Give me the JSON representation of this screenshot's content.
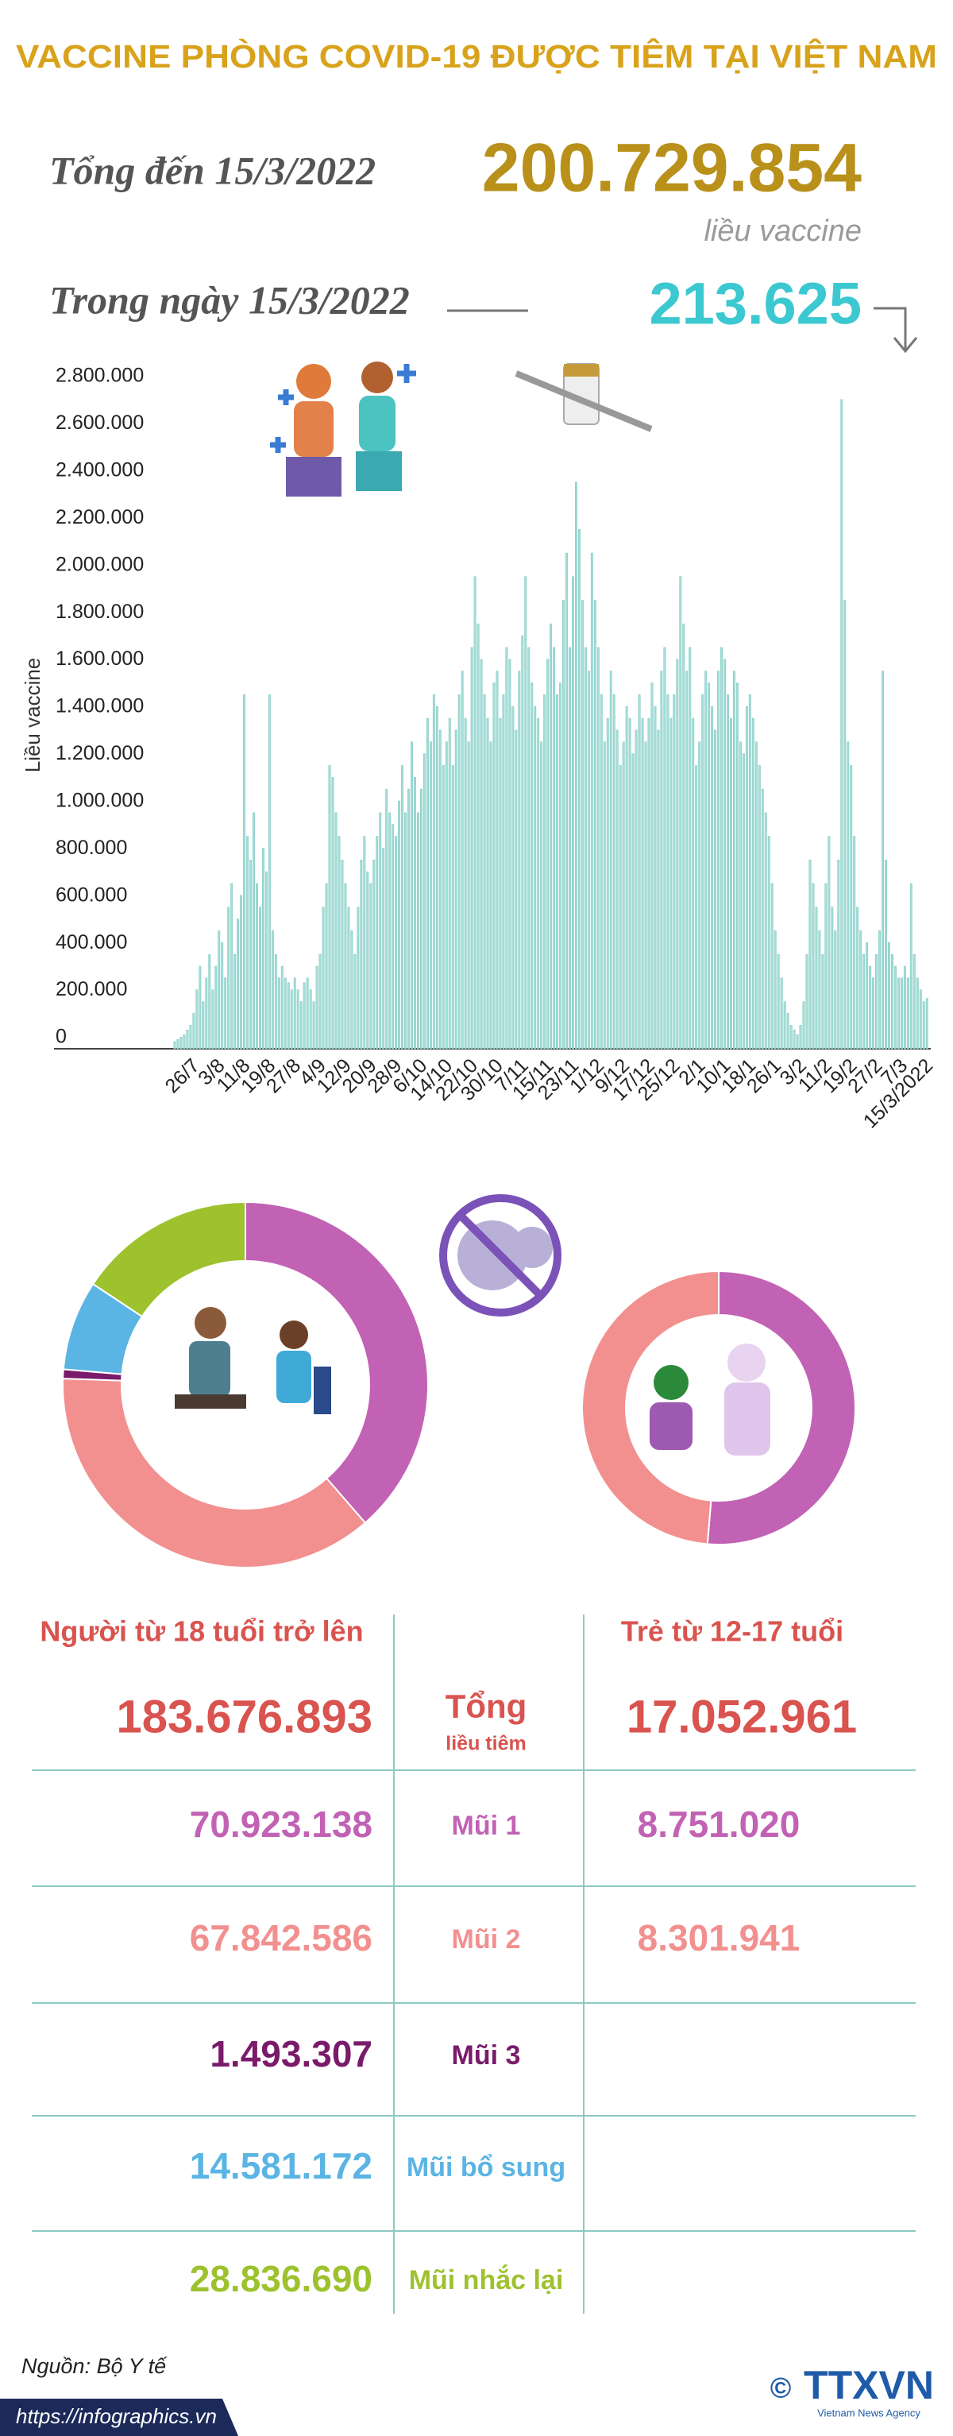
{
  "header": {
    "title": "VACCINE PHÒNG COVID-19 ĐƯỢC TIÊM TẠI VIỆT NAM",
    "total_label": "Tổng đến 15/3/2022",
    "total": "200.729.854",
    "unit": "liều vaccine",
    "daily_label": "Trong ngày 15/3/2022",
    "daily": "213.625"
  },
  "chart_data": [
    {
      "type": "bar",
      "y_label": "Liều vaccine",
      "color": "#a6ddd8",
      "grid": false,
      "ylim": [
        0,
        2800000
      ],
      "yticks": [
        0,
        {
          "value": 200000,
          "label": "200.000"
        },
        {
          "value": 400000,
          "label": "400.000"
        },
        {
          "value": 600000,
          "label": "600.000"
        },
        {
          "value": 800000,
          "label": "800.000"
        },
        {
          "value": 1000000,
          "label": "1.000.000"
        },
        {
          "value": 1200000,
          "label": "1.200.000"
        },
        {
          "value": 1400000,
          "label": "1.400.000"
        },
        {
          "value": 1600000,
          "label": "1.600.000"
        },
        {
          "value": 1800000,
          "label": "1.800.000"
        },
        {
          "value": 2000000,
          "label": "2.000.000"
        },
        {
          "value": 2200000,
          "label": "2.200.000"
        },
        {
          "value": 2400000,
          "label": "2.400.000"
        },
        {
          "value": 2600000,
          "label": "2.600.000"
        },
        {
          "value": 2800000,
          "label": "2.800.000"
        }
      ],
      "categories": [
        null,
        null,
        null,
        null,
        null,
        null,
        "26/7",
        null,
        null,
        null,
        null,
        null,
        null,
        null,
        "3/8",
        null,
        null,
        null,
        null,
        null,
        null,
        null,
        "11/8",
        null,
        null,
        null,
        null,
        null,
        null,
        null,
        "19/8",
        null,
        null,
        null,
        null,
        null,
        null,
        null,
        "27/8",
        null,
        null,
        null,
        null,
        null,
        null,
        null,
        "4/9",
        null,
        null,
        null,
        null,
        null,
        null,
        null,
        "12/9",
        null,
        null,
        null,
        null,
        null,
        null,
        null,
        "20/9",
        null,
        null,
        null,
        null,
        null,
        null,
        null,
        "28/9",
        null,
        null,
        null,
        null,
        null,
        null,
        null,
        "6/10",
        null,
        null,
        null,
        null,
        null,
        null,
        null,
        "14/10",
        null,
        null,
        null,
        null,
        null,
        null,
        null,
        "22/10",
        null,
        null,
        null,
        null,
        null,
        null,
        null,
        "30/10",
        null,
        null,
        null,
        null,
        null,
        null,
        null,
        "7/11",
        null,
        null,
        null,
        null,
        null,
        null,
        null,
        "15/11",
        null,
        null,
        null,
        null,
        null,
        null,
        null,
        "23/11",
        null,
        null,
        null,
        null,
        null,
        null,
        null,
        "1/12",
        null,
        null,
        null,
        null,
        null,
        null,
        null,
        "9/12",
        null,
        null,
        null,
        null,
        null,
        null,
        null,
        "17/12",
        null,
        null,
        null,
        null,
        null,
        null,
        null,
        "25/12",
        null,
        null,
        null,
        null,
        null,
        null,
        null,
        "2/1",
        null,
        null,
        null,
        null,
        null,
        null,
        null,
        "10/1",
        null,
        null,
        null,
        null,
        null,
        null,
        null,
        "18/1",
        null,
        null,
        null,
        null,
        null,
        null,
        null,
        "26/1",
        null,
        null,
        null,
        null,
        null,
        null,
        null,
        "3/2",
        null,
        null,
        null,
        null,
        null,
        null,
        null,
        "11/2",
        null,
        null,
        null,
        null,
        null,
        null,
        null,
        "19/2",
        null,
        null,
        null,
        null,
        null,
        null,
        null,
        "27/2",
        null,
        null,
        null,
        null,
        null,
        null,
        null,
        "7/3",
        null,
        null,
        null,
        null,
        null,
        null,
        null,
        "15/3/2022"
      ],
      "values": [
        30000,
        40000,
        50000,
        60000,
        80000,
        100000,
        150000,
        250000,
        350000,
        200000,
        300000,
        400000,
        250000,
        350000,
        500000,
        450000,
        300000,
        600000,
        700000,
        400000,
        550000,
        650000,
        1500000,
        900000,
        800000,
        1000000,
        700000,
        600000,
        850000,
        750000,
        1500000,
        500000,
        400000,
        300000,
        350000,
        300000,
        280000,
        250000,
        300000,
        250000,
        200000,
        280000,
        300000,
        250000,
        200000,
        350000,
        400000,
        600000,
        700000,
        1200000,
        1150000,
        1000000,
        900000,
        800000,
        700000,
        600000,
        500000,
        400000,
        600000,
        800000,
        900000,
        750000,
        700000,
        800000,
        900000,
        1000000,
        850000,
        1100000,
        1000000,
        950000,
        900000,
        1050000,
        1200000,
        1000000,
        1100000,
        1300000,
        1150000,
        1000000,
        1100000,
        1250000,
        1400000,
        1300000,
        1500000,
        1450000,
        1350000,
        1200000,
        1300000,
        1400000,
        1200000,
        1350000,
        1500000,
        1600000,
        1400000,
        1300000,
        1700000,
        2000000,
        1800000,
        1650000,
        1500000,
        1400000,
        1300000,
        1550000,
        1600000,
        1400000,
        1500000,
        1700000,
        1650000,
        1450000,
        1350000,
        1600000,
        1750000,
        2000000,
        1700000,
        1550000,
        1450000,
        1400000,
        1300000,
        1500000,
        1650000,
        1800000,
        1700000,
        1500000,
        1550000,
        1900000,
        2100000,
        1700000,
        2000000,
        2400000,
        2200000,
        1900000,
        1700000,
        1600000,
        2100000,
        1900000,
        1700000,
        1500000,
        1300000,
        1400000,
        1600000,
        1500000,
        1350000,
        1200000,
        1300000,
        1450000,
        1400000,
        1250000,
        1350000,
        1500000,
        1400000,
        1300000,
        1400000,
        1550000,
        1450000,
        1350000,
        1600000,
        1700000,
        1500000,
        1400000,
        1500000,
        1650000,
        2000000,
        1800000,
        1600000,
        1700000,
        1400000,
        1200000,
        1300000,
        1500000,
        1600000,
        1550000,
        1450000,
        1350000,
        1600000,
        1700000,
        1650000,
        1500000,
        1400000,
        1600000,
        1550000,
        1300000,
        1250000,
        1450000,
        1500000,
        1400000,
        1300000,
        1200000,
        1100000,
        1000000,
        900000,
        700000,
        500000,
        400000,
        300000,
        200000,
        150000,
        100000,
        80000,
        60000,
        100000,
        200000,
        400000,
        800000,
        700000,
        600000,
        500000,
        400000,
        700000,
        900000,
        600000,
        500000,
        800000,
        2750000,
        1900000,
        1300000,
        1200000,
        900000,
        600000,
        500000,
        400000,
        450000,
        350000,
        300000,
        400000,
        500000,
        1600000,
        800000,
        450000,
        400000,
        350000,
        300000,
        300000,
        350000,
        300000,
        700000,
        400000,
        300000,
        250000,
        200000,
        213625
      ]
    },
    {
      "type": "donut",
      "categories": [
        "Mũi 1",
        "Mũi 2",
        "Mũi 3",
        "Mũi bổ sung",
        "Mũi nhắc lại"
      ],
      "values": [
        70923138,
        67842586,
        1493307,
        14581172,
        28836690
      ],
      "value_labels": [
        "70.923.138",
        "67.842.586",
        "1.493.307",
        "14.581.172",
        "28.836.690"
      ],
      "colors": [
        "#c262b4",
        "#f29090",
        "#7a1a6a",
        "#5ab4e4",
        "#9dc22e"
      ]
    },
    {
      "type": "donut",
      "values": [
        8751020,
        8301941
      ],
      "value_labels": [
        "8.751.020",
        "8.301.941"
      ],
      "colors": [
        "#c262b4",
        "#f29090"
      ]
    }
  ],
  "table": {
    "headers": [
      "Người từ 18 tuổi trở lên",
      "Trẻ từ 12-17 tuổi"
    ],
    "total_label": "Tổng",
    "total_sub": "liều tiêm",
    "totals": [
      "183.676.893",
      "17.052.961"
    ]
  },
  "footer": {
    "source": "Nguồn: Bộ Y tế",
    "url": "https://infographics.vn",
    "copyright": "©",
    "logo": "TTXVN",
    "agency": "Vietnam News Agency"
  }
}
